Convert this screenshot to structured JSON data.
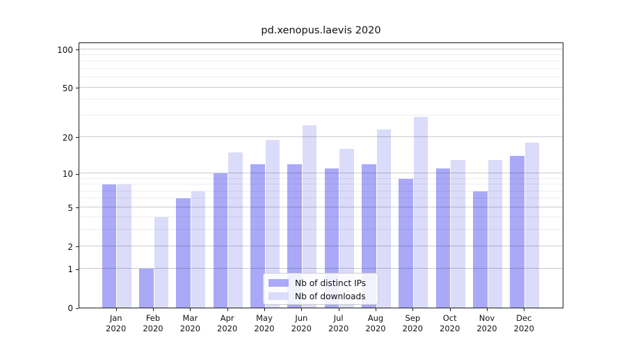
{
  "title": "pd.xenopus.laevis 2020",
  "chart_data": {
    "type": "bar",
    "title": "pd.xenopus.laevis 2020",
    "categories": [
      "Jan",
      "Feb",
      "Mar",
      "Apr",
      "May",
      "Jun",
      "Jul",
      "Aug",
      "Sep",
      "Oct",
      "Nov",
      "Dec"
    ],
    "x_year_label": "2020",
    "series": [
      {
        "name": "Nb of distinct IPs",
        "color": "#a9a9f8",
        "values": [
          8,
          1,
          6,
          10,
          12,
          12,
          11,
          12,
          9,
          11,
          7,
          14
        ]
      },
      {
        "name": "Nb of downloads",
        "color": "#dbdbfa",
        "values": [
          8,
          4,
          7,
          15,
          19,
          25,
          16,
          23,
          29,
          13,
          13,
          18
        ]
      }
    ],
    "y_axis": {
      "scale": "log1p",
      "ticks": [
        0,
        1,
        2,
        5,
        10,
        20,
        50,
        100
      ],
      "minor_gridlines": [
        3,
        4,
        6,
        7,
        8,
        9,
        30,
        40,
        60,
        70,
        80,
        90
      ],
      "ylim": [
        0,
        114
      ]
    },
    "grid": true,
    "legend_position": "bottom-center"
  }
}
